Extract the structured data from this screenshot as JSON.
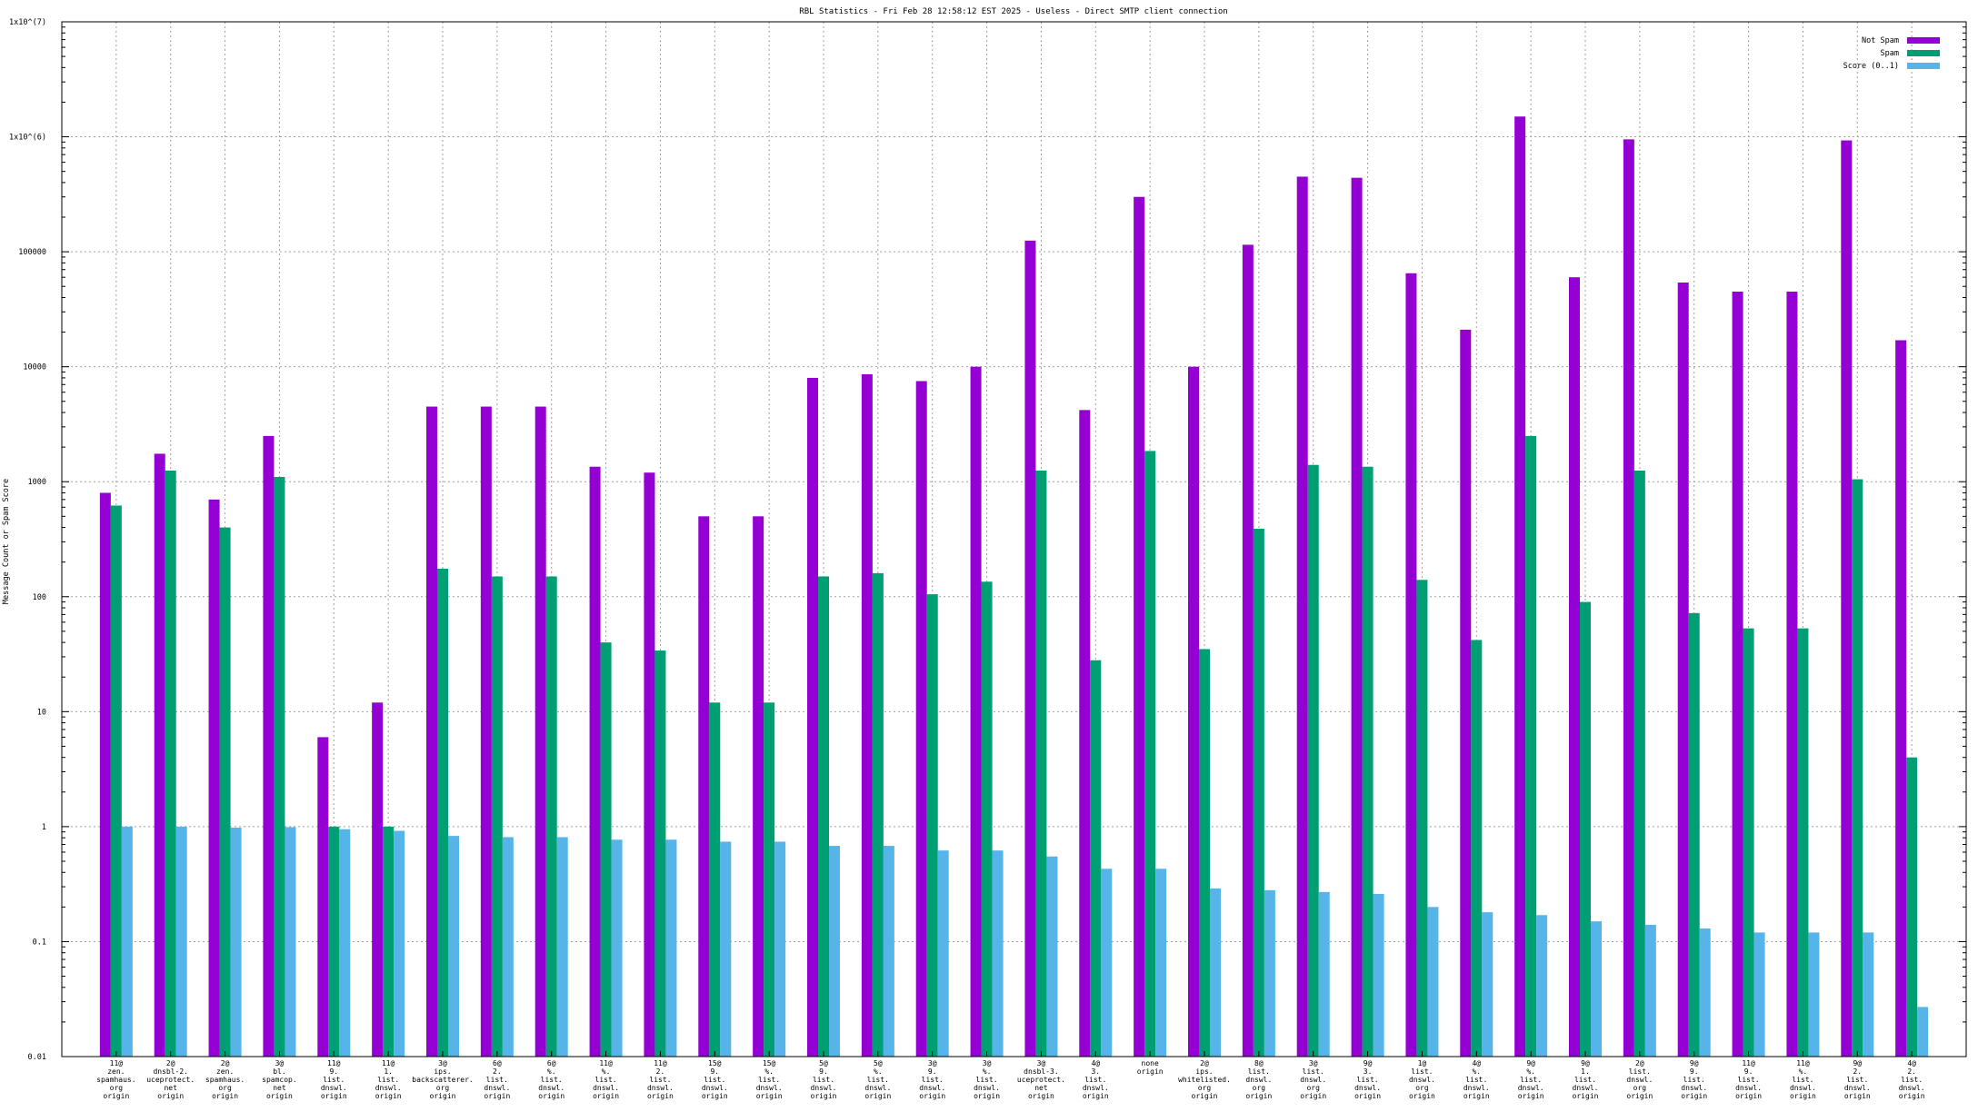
{
  "chart_data": {
    "type": "bar",
    "title": "RBL Statistics - Fri Feb 28 12:58:12 EST 2025 - Useless - Direct SMTP client connection",
    "ylabel": "Message Count or Spam Score",
    "xlabel": "",
    "yscale": "log",
    "ylim": [
      0.01,
      10000000
    ],
    "yticks": [
      "0.01",
      "0.1",
      "1",
      "10",
      "100",
      "1000",
      "10000",
      "100000",
      "1x10^(6)",
      "1x10^(7)"
    ],
    "grid": true,
    "legend_position": "top-right",
    "categories": [
      [
        "11@",
        "zen.",
        "spamhaus.",
        "org",
        "origin"
      ],
      [
        "2@",
        "dnsbl-2.",
        "uceprotect.",
        "net",
        "origin"
      ],
      [
        "2@",
        "zen.",
        "spamhaus.",
        "org",
        "origin"
      ],
      [
        "3@",
        "bl.",
        "spamcop.",
        "net",
        "origin"
      ],
      [
        "11@",
        "9.",
        "list.",
        "dnswl.",
        "origin"
      ],
      [
        "11@",
        "1.",
        "list.",
        "dnswl.",
        "origin"
      ],
      [
        "3@",
        "ips.",
        "backscatterer.",
        "org",
        "origin"
      ],
      [
        "6@",
        "2.",
        "list.",
        "dnswl.",
        "origin"
      ],
      [
        "6@",
        "%.",
        "list.",
        "dnswl.",
        "origin"
      ],
      [
        "11@",
        "%.",
        "list.",
        "dnswl.",
        "origin"
      ],
      [
        "11@",
        "2.",
        "list.",
        "dnswl.",
        "origin"
      ],
      [
        "15@",
        "9.",
        "list.",
        "dnswl.",
        "origin"
      ],
      [
        "15@",
        "%.",
        "list.",
        "dnswl.",
        "origin"
      ],
      [
        "5@",
        "9.",
        "list.",
        "dnswl.",
        "origin"
      ],
      [
        "5@",
        "%.",
        "list.",
        "dnswl.",
        "origin"
      ],
      [
        "3@",
        "9.",
        "list.",
        "dnswl.",
        "origin"
      ],
      [
        "3@",
        "%.",
        "list.",
        "dnswl.",
        "origin"
      ],
      [
        "3@",
        "dnsbl-3.",
        "uceprotect.",
        "net",
        "origin"
      ],
      [
        "4@",
        "3.",
        "list.",
        "dnswl.",
        "origin"
      ],
      [
        "none",
        "origin"
      ],
      [
        "2@",
        "ips.",
        "whitelisted.",
        "org",
        "origin"
      ],
      [
        "8@",
        "list.",
        "dnswl.",
        "org",
        "origin"
      ],
      [
        "3@",
        "list.",
        "dnswl.",
        "org",
        "origin"
      ],
      [
        "9@",
        "3.",
        "list.",
        "dnswl.",
        "origin"
      ],
      [
        "1@",
        "list.",
        "dnswl.",
        "org",
        "origin"
      ],
      [
        "4@",
        "%.",
        "list.",
        "dnswl.",
        "origin"
      ],
      [
        "9@",
        "%.",
        "list.",
        "dnswl.",
        "origin"
      ],
      [
        "9@",
        "1.",
        "list.",
        "dnswl.",
        "origin"
      ],
      [
        "2@",
        "list.",
        "dnswl.",
        "org",
        "origin"
      ],
      [
        "9@",
        "9.",
        "list.",
        "dnswl.",
        "origin"
      ],
      [
        "11@",
        "9.",
        "list.",
        "dnswl.",
        "origin"
      ],
      [
        "11@",
        "%.",
        "list.",
        "dnswl.",
        "origin"
      ],
      [
        "9@",
        "2.",
        "list.",
        "dnswl.",
        "origin"
      ],
      [
        "4@",
        "2.",
        "list.",
        "dnswl.",
        "origin"
      ]
    ],
    "series": [
      {
        "name": "Not Spam",
        "color": "#9400d3",
        "values": [
          800,
          1750,
          700,
          2500,
          6,
          12,
          4500,
          4500,
          4500,
          1350,
          1200,
          500,
          500,
          8000,
          8600,
          7500,
          10000,
          125000,
          4200,
          300000,
          10000,
          115000,
          450000,
          440000,
          65000,
          21000,
          1500000,
          60000,
          950000,
          54000,
          45000,
          45000,
          930000,
          17000
        ]
      },
      {
        "name": "Spam",
        "color": "#009e73",
        "values": [
          620,
          1250,
          400,
          1100,
          1,
          1,
          175,
          150,
          150,
          40,
          34,
          12,
          12,
          150,
          160,
          105,
          135,
          1250,
          28,
          1850,
          35,
          390,
          1400,
          1350,
          140,
          42,
          2500,
          90,
          1250,
          72,
          53,
          53,
          1050,
          4
        ]
      },
      {
        "name": "Score (0..1)",
        "color": "#56b4e9",
        "values": [
          1.0,
          1.0,
          0.98,
          0.99,
          0.95,
          0.92,
          0.83,
          0.81,
          0.81,
          0.77,
          0.77,
          0.74,
          0.74,
          0.68,
          0.68,
          0.62,
          0.62,
          0.55,
          0.43,
          0.43,
          0.29,
          0.28,
          0.27,
          0.26,
          0.2,
          0.18,
          0.17,
          0.15,
          0.14,
          0.13,
          0.12,
          0.12,
          0.12,
          0.027
        ]
      }
    ]
  }
}
